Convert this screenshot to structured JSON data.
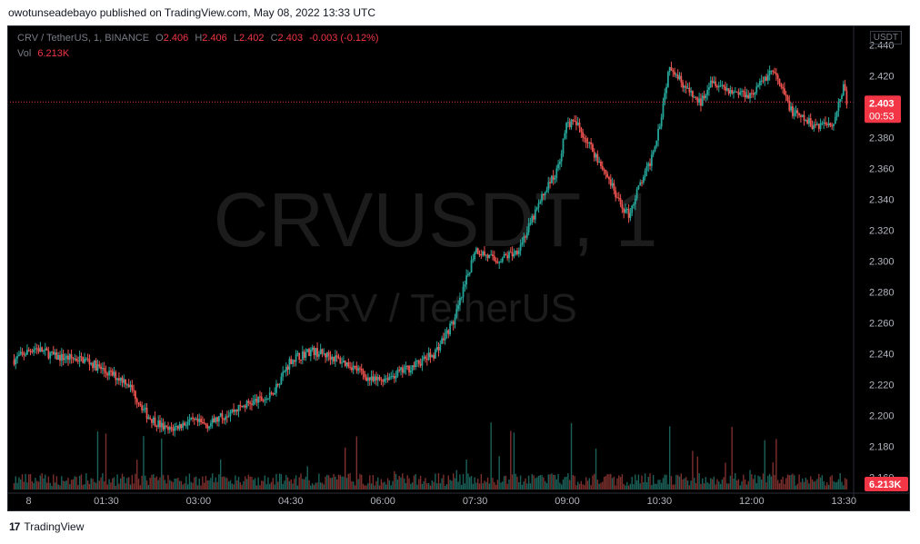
{
  "publisher_line": "owotunseadebayo published on TradingView.com, May 08, 2022 13:33 UTC",
  "footer": {
    "brand": "TradingView",
    "logo_glyph": "17"
  },
  "legend": {
    "symbol_text": "CRV / TetherUS, 1, BINANCE",
    "o_label": "O",
    "open": "2.406",
    "h_label": "H",
    "high": "2.406",
    "l_label": "L",
    "low": "2.402",
    "c_label": "C",
    "close": "2.403",
    "change": "-0.003 (-0.12%)",
    "vol_label": "Vol",
    "vol_value": "6.213K"
  },
  "currency_box": "USDT",
  "colors": {
    "up": "#26a69a",
    "down": "#ef5350",
    "price_label_bg": "#f23645",
    "watermark": "#1c1c1c"
  },
  "chart_data": {
    "type": "candlestick",
    "watermark_symbol": "CRVUSDT, 1",
    "watermark_name": "CRV / TetherUS",
    "y_ticks": [
      "2.440",
      "2.420",
      "2.400",
      "2.380",
      "2.360",
      "2.340",
      "2.320",
      "2.300",
      "2.280",
      "2.260",
      "2.240",
      "2.220",
      "2.200",
      "2.180",
      "2.160"
    ],
    "ylim": [
      2.152,
      2.452
    ],
    "x_ticks": [
      "8",
      "01:30",
      "03:00",
      "04:30",
      "06:00",
      "07:30",
      "09:00",
      "10:30",
      "12:00",
      "13:30"
    ],
    "last_price": "2.403",
    "countdown": "00:53",
    "last_volume": "6.213K",
    "close_path_anchors": [
      [
        "00:00",
        2.236
      ],
      [
        "00:20",
        2.244
      ],
      [
        "00:40",
        2.238
      ],
      [
        "01:10",
        2.236
      ],
      [
        "01:30",
        2.228
      ],
      [
        "01:50",
        2.222
      ],
      [
        "02:10",
        2.2
      ],
      [
        "02:30",
        2.19
      ],
      [
        "02:50",
        2.196
      ],
      [
        "03:10",
        2.194
      ],
      [
        "03:30",
        2.202
      ],
      [
        "03:50",
        2.208
      ],
      [
        "04:10",
        2.212
      ],
      [
        "04:30",
        2.236
      ],
      [
        "04:50",
        2.242
      ],
      [
        "05:10",
        2.238
      ],
      [
        "05:30",
        2.232
      ],
      [
        "05:50",
        2.222
      ],
      [
        "06:10",
        2.226
      ],
      [
        "06:30",
        2.232
      ],
      [
        "06:50",
        2.24
      ],
      [
        "07:10",
        2.262
      ],
      [
        "07:20",
        2.284
      ],
      [
        "07:30",
        2.308
      ],
      [
        "07:50",
        2.3
      ],
      [
        "08:10",
        2.306
      ],
      [
        "08:20",
        2.318
      ],
      [
        "08:40",
        2.348
      ],
      [
        "08:50",
        2.358
      ],
      [
        "09:00",
        2.39
      ],
      [
        "09:10",
        2.388
      ],
      [
        "09:30",
        2.366
      ],
      [
        "09:40",
        2.354
      ],
      [
        "09:50",
        2.338
      ],
      [
        "10:00",
        2.33
      ],
      [
        "10:10",
        2.348
      ],
      [
        "10:20",
        2.362
      ],
      [
        "10:30",
        2.388
      ],
      [
        "10:40",
        2.428
      ],
      [
        "11:00",
        2.408
      ],
      [
        "11:10",
        2.402
      ],
      [
        "11:20",
        2.418
      ],
      [
        "11:40",
        2.41
      ],
      [
        "12:00",
        2.408
      ],
      [
        "12:20",
        2.424
      ],
      [
        "12:40",
        2.396
      ],
      [
        "13:00",
        2.388
      ],
      [
        "13:20",
        2.39
      ],
      [
        "13:30",
        2.414
      ],
      [
        "13:33",
        2.403
      ]
    ]
  }
}
